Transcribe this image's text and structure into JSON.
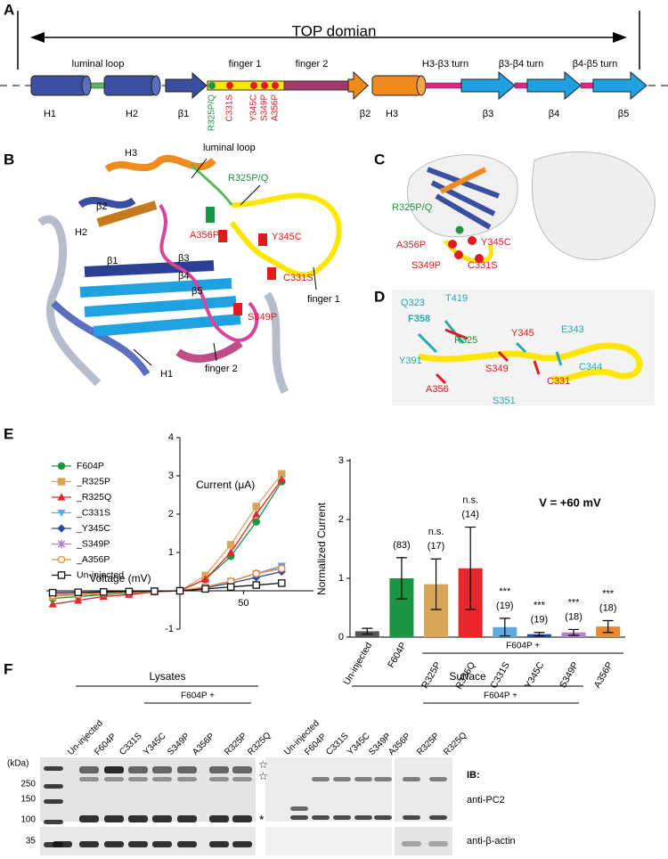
{
  "figure": {
    "A": {
      "label": "A",
      "title": "TOP domian",
      "regions": [
        "luminal loop",
        "finger 1",
        "finger 2",
        "H3-β3 turn",
        "β3-β4 turn",
        "β4-β5 turn"
      ],
      "elements": [
        "H1",
        "H2",
        "β1",
        "β2",
        "H3",
        "β3",
        "β4",
        "β5"
      ],
      "mutations": [
        {
          "text": "R325P/Q",
          "color": "#1a9641"
        },
        {
          "text": "C331S",
          "color": "#e31a1c"
        },
        {
          "text": "Y345C",
          "color": "#e31a1c"
        },
        {
          "text": "S349P",
          "color": "#e31a1c"
        },
        {
          "text": "A356P",
          "color": "#e31a1c"
        }
      ]
    },
    "B": {
      "label": "B",
      "labels": [
        "H3",
        "luminal loop",
        "R325P/Q",
        "β2",
        "H2",
        "A356P",
        "Y345C",
        "β1",
        "β3",
        "β4",
        "β5",
        "C331S",
        "finger 1",
        "S349P",
        "H1",
        "finger 2"
      ]
    },
    "C": {
      "label": "C",
      "labels": [
        "R325P/Q",
        "A356P",
        "Y345C",
        "S349P",
        "C331S"
      ]
    },
    "D": {
      "label": "D",
      "labels": [
        "Q323",
        "T419",
        "F358",
        "R325",
        "Y345",
        "E343",
        "Y391",
        "C344",
        "S349",
        "C331",
        "A356",
        "S351"
      ]
    },
    "E": {
      "label": "E"
    },
    "F": {
      "label": "F",
      "groups": [
        "Lysates",
        "Surface"
      ],
      "subgroup": "F604P +",
      "lysate_lanes": [
        "Un-injected",
        "F604P",
        "C331S",
        "Y345C",
        "S349P",
        "A356P",
        "R325P",
        "R325Q"
      ],
      "surface_lanes": [
        "Un-injected",
        "F604P",
        "C331S",
        "Y345C",
        "S349P",
        "A356P",
        "R325P",
        "R325Q"
      ],
      "kda_label": "(kDa)",
      "size_markers": [
        250,
        150,
        100,
        35
      ],
      "ib": "IB:",
      "antibodies": [
        "anti-PC2",
        "anti-β-actin"
      ],
      "symbols": [
        "☆",
        "☆",
        "*"
      ]
    }
  },
  "chart_data": [
    {
      "type": "line",
      "x_label": "Voltage (mV)",
      "y_label": "Current (μA)",
      "x": [
        -100,
        -80,
        -60,
        -40,
        -20,
        0,
        20,
        40,
        60,
        80
      ],
      "xlim": [
        -105,
        105
      ],
      "xticks": [
        50
      ],
      "ylim": [
        -1,
        4
      ],
      "yticks": [
        -1,
        1,
        2,
        3,
        4
      ],
      "series": [
        {
          "name": "F604P",
          "color": "#1a9641",
          "marker": "circle",
          "values": [
            -0.2,
            -0.15,
            -0.1,
            -0.06,
            -0.02,
            0,
            0.3,
            0.9,
            1.8,
            2.85
          ]
        },
        {
          "name": "_R325P",
          "color": "#d9a55b",
          "marker": "square",
          "values": [
            -0.15,
            -0.1,
            -0.08,
            -0.05,
            -0.02,
            0,
            0.4,
            1.2,
            2.2,
            3.05
          ]
        },
        {
          "name": "_R325Q",
          "color": "#e8262c",
          "marker": "triangle",
          "values": [
            -0.35,
            -0.25,
            -0.15,
            -0.1,
            -0.03,
            0,
            0.3,
            1.0,
            2.0,
            2.9
          ]
        },
        {
          "name": "_C331S",
          "color": "#5fa8e0",
          "marker": "triangle-down",
          "values": [
            -0.1,
            -0.08,
            -0.06,
            -0.04,
            -0.02,
            0,
            0.1,
            0.25,
            0.45,
            0.65
          ]
        },
        {
          "name": "_Y345C",
          "color": "#2b4a9c",
          "marker": "diamond",
          "values": [
            -0.1,
            -0.08,
            -0.05,
            -0.03,
            -0.01,
            0,
            0.08,
            0.2,
            0.35,
            0.5
          ]
        },
        {
          "name": "_S349P",
          "color": "#b57ecf",
          "marker": "cross",
          "values": [
            -0.1,
            -0.08,
            -0.06,
            -0.04,
            -0.02,
            0,
            0.1,
            0.25,
            0.45,
            0.6
          ]
        },
        {
          "name": "_A356P",
          "color": "#e88a2d",
          "marker": "circle-open",
          "values": [
            -0.12,
            -0.09,
            -0.06,
            -0.04,
            -0.02,
            0,
            0.1,
            0.25,
            0.45,
            0.58
          ]
        },
        {
          "name": "Un-injected",
          "color": "#111111",
          "marker": "square-open",
          "values": [
            -0.05,
            -0.04,
            -0.03,
            -0.02,
            -0.01,
            0,
            0.05,
            0.1,
            0.15,
            0.2
          ]
        }
      ]
    },
    {
      "type": "bar",
      "y_label": "Normalized Current",
      "categories": [
        "Un-injected",
        "F604P",
        "R325P",
        "R325Q",
        "C331S",
        "Y345C",
        "S349P",
        "A356P"
      ],
      "values": [
        0.1,
        1.0,
        0.9,
        1.17,
        0.17,
        0.05,
        0.08,
        0.18
      ],
      "errors": [
        0.05,
        0.35,
        0.43,
        0.7,
        0.15,
        0.03,
        0.05,
        0.1
      ],
      "colors": [
        "#555555",
        "#1a9641",
        "#d9a55b",
        "#e8262c",
        "#5fa8e0",
        "#2b4a9c",
        "#b57ecf",
        "#e88a2d"
      ],
      "ylim": [
        0,
        3
      ],
      "yticks": [
        0,
        1,
        2,
        3
      ],
      "n_labels": [
        null,
        "(83)",
        "(17)",
        "(14)",
        "(19)",
        "(19)",
        "(18)",
        "(18)"
      ],
      "significance": [
        null,
        null,
        "n.s.",
        "n.s.",
        "***",
        "***",
        "***",
        "***"
      ],
      "annotation": "V = +60 mV",
      "group_label": "F604P +"
    }
  ]
}
